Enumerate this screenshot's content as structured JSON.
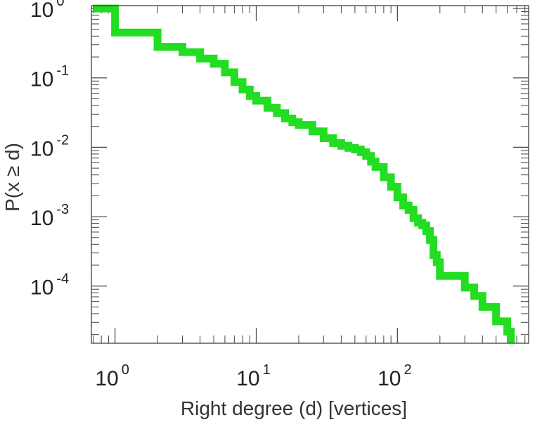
{
  "chart_data": {
    "type": "line",
    "xlabel": "Right degree (d) [vertices]",
    "ylabel": "P(x ≥ d)",
    "x_scale": "log",
    "y_scale": "log",
    "xlim": [
      0.68,
      850
    ],
    "ylim": [
      1.5e-05,
      1.1
    ],
    "grid": false,
    "x_ticks": [
      {
        "base": "10",
        "exp": "0",
        "value": 1
      },
      {
        "base": "10",
        "exp": "1",
        "value": 10
      },
      {
        "base": "10",
        "exp": "2",
        "value": 100
      }
    ],
    "y_ticks": [
      {
        "base": "10",
        "exp": "0",
        "value": 1
      },
      {
        "base": "10",
        "exp": "-1",
        "value": 0.1
      },
      {
        "base": "10",
        "exp": "-2",
        "value": 0.01
      },
      {
        "base": "10",
        "exp": "-3",
        "value": 0.001
      },
      {
        "base": "10",
        "exp": "-4",
        "value": 0.0001
      }
    ],
    "series": [
      {
        "color": "#22dd22",
        "step": true,
        "x": [
          0.7,
          1,
          2,
          3,
          4,
          5,
          6,
          7,
          8,
          9,
          10,
          12,
          14,
          16,
          18,
          20,
          25,
          30,
          35,
          40,
          45,
          50,
          55,
          60,
          65,
          70,
          80,
          90,
          100,
          110,
          120,
          130,
          140,
          150,
          160,
          170,
          180,
          190,
          200,
          250,
          300,
          350,
          400,
          500,
          600
        ],
        "y": [
          1,
          0.45,
          0.28,
          0.235,
          0.19,
          0.16,
          0.12,
          0.087,
          0.068,
          0.055,
          0.047,
          0.037,
          0.031,
          0.026,
          0.023,
          0.021,
          0.017,
          0.0135,
          0.0115,
          0.0105,
          0.0098,
          0.0093,
          0.0085,
          0.0075,
          0.0062,
          0.0052,
          0.0037,
          0.0027,
          0.0019,
          0.00145,
          0.00125,
          0.00095,
          0.00082,
          0.00075,
          0.00062,
          0.00046,
          0.00028,
          0.00022,
          0.00014,
          0.00014,
          9.5e-05,
          7.2e-05,
          5e-05,
          3.1e-05,
          2.2e-05
        ]
      }
    ]
  }
}
